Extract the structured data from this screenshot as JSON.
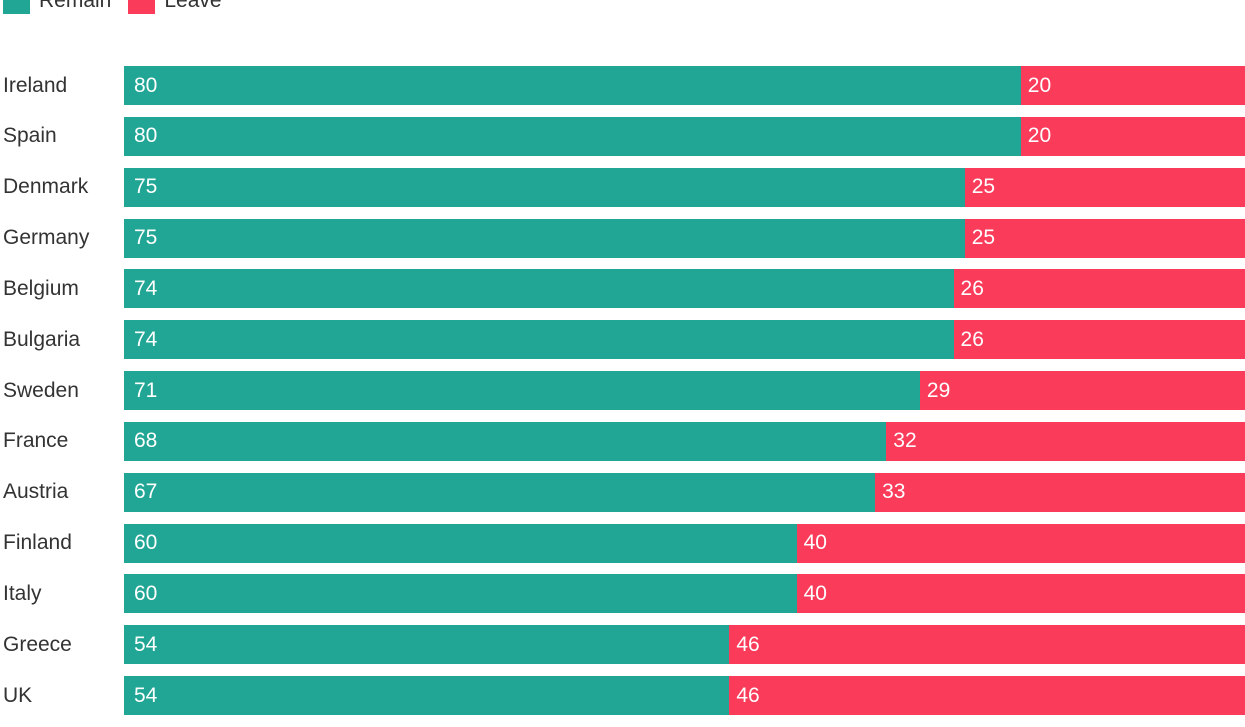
{
  "legend": {
    "position": "top-left",
    "items": [
      {
        "id": "remain",
        "label": "Remain",
        "color": "#21a695"
      },
      {
        "id": "leave",
        "label": "Leave",
        "color": "#fa3b5a"
      }
    ]
  },
  "chart_data": {
    "type": "bar",
    "orientation": "horizontal",
    "stacked": true,
    "title": "",
    "xlabel": "",
    "ylabel": "",
    "xlim": [
      0,
      100
    ],
    "grid": false,
    "legend_position": "top-left",
    "value_labels": "inside-start-white",
    "categories": [
      "Ireland",
      "Spain",
      "Denmark",
      "Germany",
      "Belgium",
      "Bulgaria",
      "Sweden",
      "France",
      "Austria",
      "Finland",
      "Italy",
      "Greece",
      "UK"
    ],
    "series": [
      {
        "name": "Remain",
        "color": "#21a695",
        "values": [
          80,
          80,
          75,
          75,
          74,
          74,
          71,
          68,
          67,
          60,
          60,
          54,
          54
        ]
      },
      {
        "name": "Leave",
        "color": "#fa3b5a",
        "values": [
          20,
          20,
          25,
          25,
          26,
          26,
          29,
          32,
          33,
          40,
          40,
          46,
          46
        ]
      }
    ]
  },
  "colors": {
    "remain": "#21a695",
    "leave": "#fa3b5a",
    "label_text": "#333333",
    "value_text": "#ffffff",
    "background": "#ffffff"
  }
}
